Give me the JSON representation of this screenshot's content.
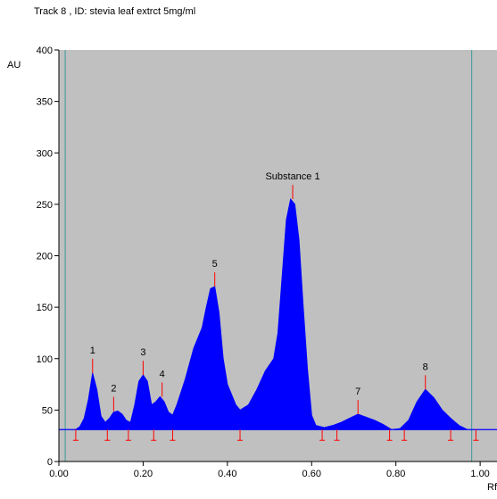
{
  "chart_data": {
    "type": "area",
    "title": "Track  8 , ID: stevia leaf extrct 5mg/ml",
    "y_label": "AU",
    "x_label": "Rf",
    "color": "#0000ff",
    "background": "#c0c0c0",
    "xlim": [
      0,
      1.04
    ],
    "ylim": [
      0,
      400
    ],
    "xticks": [
      {
        "value": 0,
        "label": "0.00"
      },
      {
        "value": 0.2,
        "label": "0.20"
      },
      {
        "value": 0.4,
        "label": "0.40"
      },
      {
        "value": 0.6,
        "label": "0.60"
      },
      {
        "value": 0.8,
        "label": "0.80"
      },
      {
        "value": 1,
        "label": "1.00"
      }
    ],
    "yticks": [
      0,
      50,
      100,
      150,
      200,
      250,
      300,
      350,
      400
    ],
    "baseline": 31,
    "x": [
      0,
      0.04,
      0.05,
      0.06,
      0.07,
      0.08,
      0.09,
      0.1,
      0.11,
      0.12,
      0.13,
      0.14,
      0.15,
      0.16,
      0.17,
      0.18,
      0.19,
      0.2,
      0.21,
      0.22,
      0.23,
      0.24,
      0.25,
      0.26,
      0.27,
      0.28,
      0.3,
      0.32,
      0.34,
      0.35,
      0.36,
      0.37,
      0.38,
      0.39,
      0.4,
      0.42,
      0.43,
      0.45,
      0.47,
      0.49,
      0.51,
      0.52,
      0.53,
      0.54,
      0.55,
      0.56,
      0.57,
      0.58,
      0.59,
      0.6,
      0.61,
      0.63,
      0.65,
      0.67,
      0.69,
      0.71,
      0.73,
      0.75,
      0.77,
      0.79,
      0.81,
      0.83,
      0.85,
      0.87,
      0.89,
      0.91,
      0.93,
      0.95,
      0.97,
      1.0,
      1.04
    ],
    "values": [
      31,
      31,
      34,
      42,
      60,
      86,
      70,
      44,
      38,
      42,
      48,
      49,
      46,
      40,
      38,
      55,
      78,
      84,
      78,
      55,
      58,
      63,
      58,
      48,
      45,
      55,
      80,
      110,
      130,
      150,
      168,
      170,
      145,
      100,
      75,
      55,
      50,
      55,
      70,
      88,
      100,
      125,
      180,
      235,
      255,
      250,
      215,
      150,
      90,
      45,
      35,
      33,
      35,
      38,
      42,
      46,
      43,
      40,
      36,
      31,
      32,
      40,
      58,
      70,
      62,
      50,
      42,
      35,
      31,
      31,
      31
    ],
    "peaks": [
      {
        "label": "1",
        "x": 0.08,
        "y": 86
      },
      {
        "label": "2",
        "x": 0.13,
        "y": 49
      },
      {
        "label": "3",
        "x": 0.2,
        "y": 84
      },
      {
        "label": "4",
        "x": 0.245,
        "y": 63
      },
      {
        "label": "5",
        "x": 0.37,
        "y": 170
      },
      {
        "label": "Substance 1",
        "x": 0.555,
        "y": 255
      },
      {
        "label": "7",
        "x": 0.71,
        "y": 46
      },
      {
        "label": "8",
        "x": 0.87,
        "y": 70
      }
    ],
    "boundaries": [
      0.04,
      0.115,
      0.165,
      0.225,
      0.27,
      0.43,
      0.625,
      0.66,
      0.785,
      0.82,
      0.93,
      0.99
    ],
    "track_lines": [
      0.015,
      0.98
    ]
  }
}
